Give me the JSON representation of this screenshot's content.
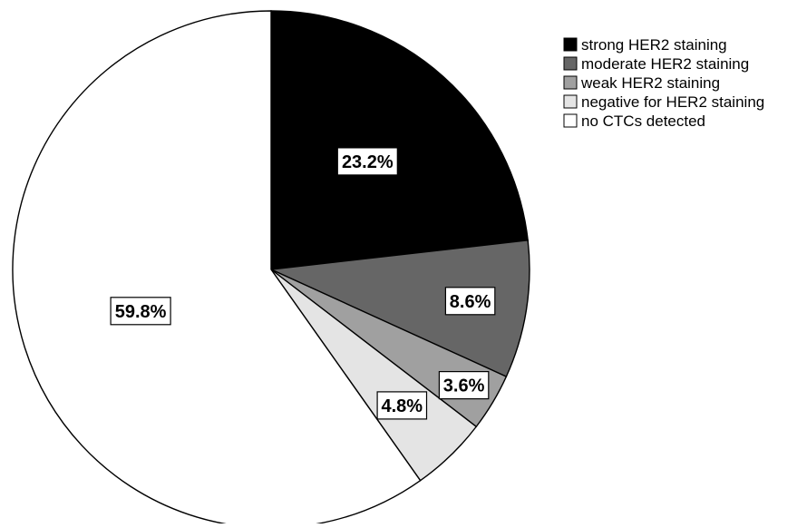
{
  "chart_data": {
    "type": "pie",
    "title": "",
    "categories": [
      "strong HER2 staining",
      "moderate HER2 staining",
      "weak HER2 staining",
      "negative for HER2 staining",
      "no CTCs detected"
    ],
    "values": [
      23.2,
      8.6,
      3.6,
      4.8,
      59.8
    ],
    "data_labels": [
      "23.2%",
      "8.6%",
      "3.6%",
      "4.8%",
      "59.8%"
    ],
    "colors": [
      "#000000",
      "#666666",
      "#a0a0a0",
      "#e4e4e4",
      "#ffffff"
    ],
    "start_angle": "12 o'clock",
    "direction": "clockwise",
    "legend": {
      "position": "top-right",
      "entries": [
        "strong HER2 staining",
        "moderate HER2 staining",
        "weak HER2 staining",
        "negative for HER2 staining",
        "no CTCs detected"
      ]
    }
  }
}
